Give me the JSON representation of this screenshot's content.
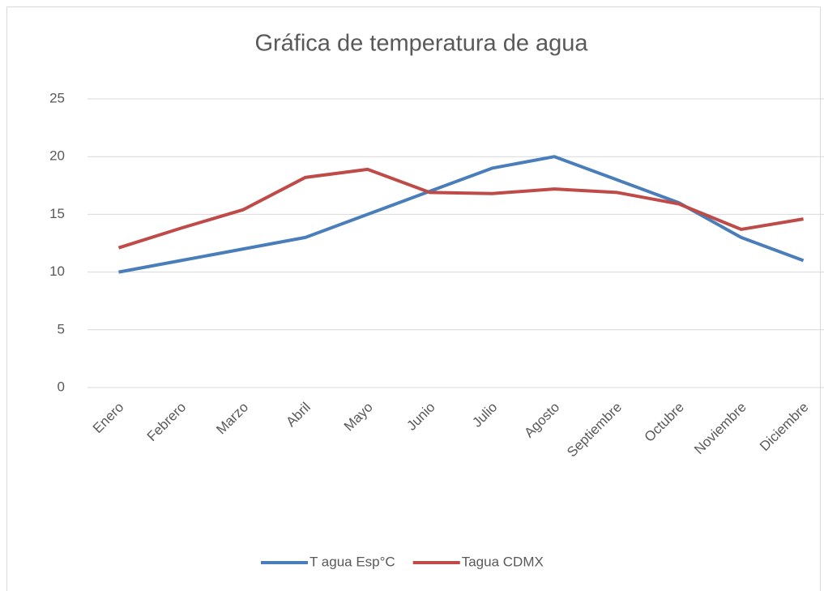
{
  "chart_data": {
    "type": "line",
    "title": "Gráfica de temperatura de agua",
    "categories": [
      "Enero",
      "Febrero",
      "Marzo",
      "Abril",
      "Mayo",
      "Junio",
      "Julio",
      "Agosto",
      "Septiembre",
      "Octubre",
      "Noviembre",
      "Diciembre"
    ],
    "series": [
      {
        "name": "T agua Esp°C",
        "color": "#4a7ebb",
        "values": [
          10,
          11,
          12,
          13,
          15,
          17,
          19,
          20,
          18,
          16,
          13,
          11
        ]
      },
      {
        "name": "Tagua CDMX",
        "color": "#be4b48",
        "values": [
          12.1,
          13.8,
          15.4,
          18.2,
          18.9,
          16.9,
          16.8,
          17.2,
          16.9,
          15.9,
          13.7,
          14.6
        ]
      }
    ],
    "ylim": [
      0,
      25
    ],
    "yticks": [
      0,
      5,
      10,
      15,
      20,
      25
    ],
    "grid": true,
    "legend": "bottom"
  }
}
